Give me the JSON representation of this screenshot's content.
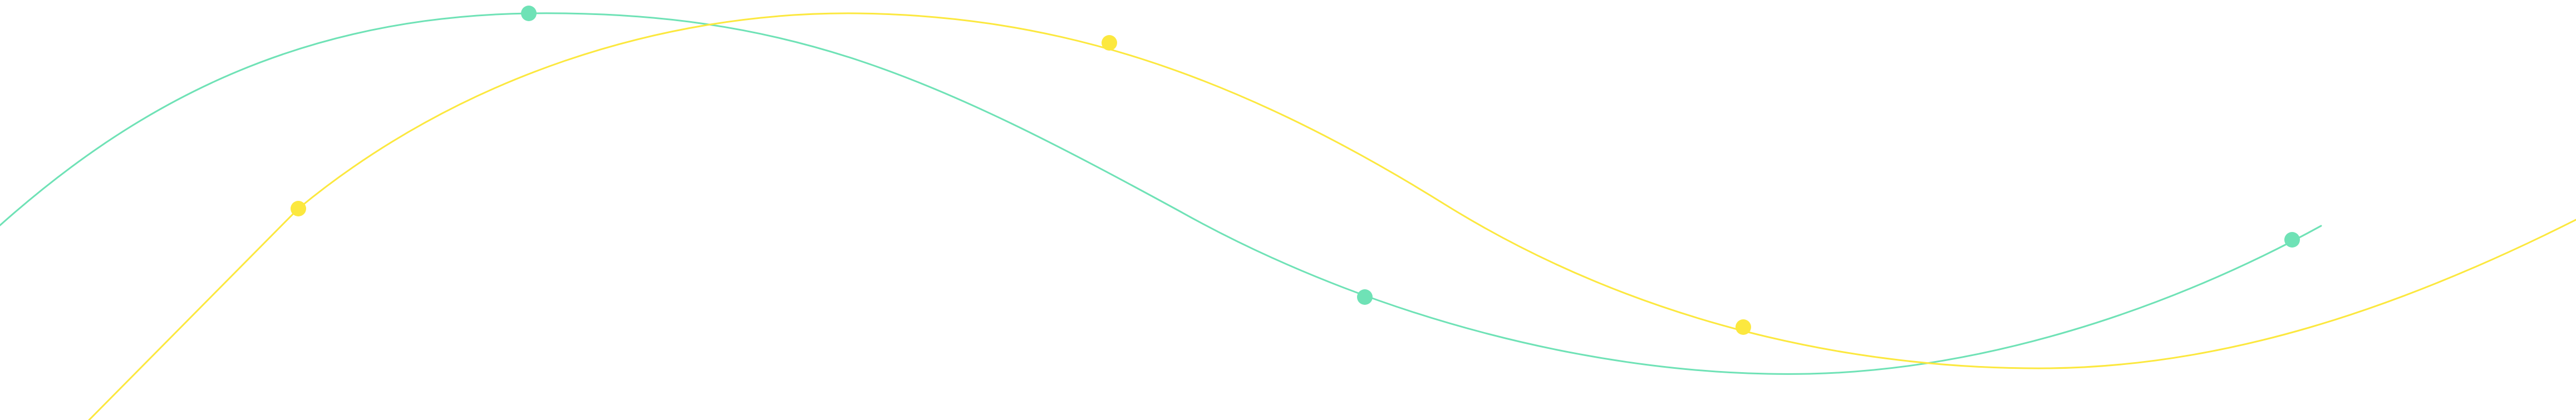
{
  "decoration": {
    "background_color": "#ffffff",
    "waves": [
      {
        "name": "teal-wave",
        "color": "#6fe2b6",
        "dot_count": 3
      },
      {
        "name": "yellow-wave",
        "color": "#fce83f",
        "dot_count": 3
      }
    ]
  }
}
